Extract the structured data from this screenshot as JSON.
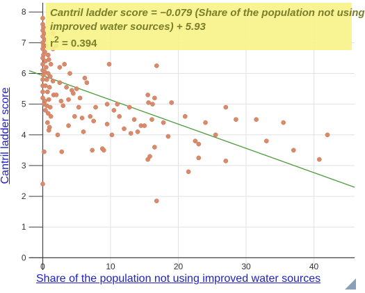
{
  "chart_data": {
    "type": "scatter",
    "xlabel": "Share of the population not using improved water sources",
    "ylabel": "Cantril ladder score",
    "xlim": [
      -2,
      46
    ],
    "ylim": [
      -0.4,
      8.3
    ],
    "x_ticks": [
      0,
      10,
      20,
      30,
      40
    ],
    "y_ticks": [
      0,
      1,
      2,
      3,
      4,
      5,
      6,
      7,
      8
    ],
    "grid": true,
    "point_color": "#d98a6a",
    "trend_color": "#4b9a3a",
    "trendline": {
      "slope": -0.079,
      "intercept": 5.93
    },
    "annotation": {
      "line1": "Cantril ladder score = −0.079 (Share of the population not using",
      "line2": "improved water sources) + 5.93",
      "r2_prefix": "r",
      "r2_sup": "2",
      "r2_value": " = 0.394"
    },
    "points": [
      [
        0,
        7.8
      ],
      [
        0,
        7.6
      ],
      [
        0.1,
        7.5
      ],
      [
        0,
        7.4
      ],
      [
        0.2,
        7.3
      ],
      [
        0,
        7.2
      ],
      [
        0.3,
        7.1
      ],
      [
        0,
        7.0
      ],
      [
        0.1,
        6.9
      ],
      [
        0.5,
        6.9
      ],
      [
        1.5,
        7.3
      ],
      [
        2.0,
        6.9
      ],
      [
        0,
        6.8
      ],
      [
        0.3,
        6.7
      ],
      [
        0.1,
        6.6
      ],
      [
        0.8,
        6.6
      ],
      [
        1.5,
        6.8
      ],
      [
        0,
        6.5
      ],
      [
        0.4,
        6.4
      ],
      [
        0.9,
        6.45
      ],
      [
        0,
        6.3
      ],
      [
        0.5,
        6.2
      ],
      [
        1.2,
        6.3
      ],
      [
        0,
        6.1
      ],
      [
        0.3,
        6.05
      ],
      [
        0.8,
        6.0
      ],
      [
        0.1,
        5.95
      ],
      [
        1.1,
        5.9
      ],
      [
        2.5,
        6.2
      ],
      [
        4.0,
        6.0
      ],
      [
        3.2,
        6.3
      ],
      [
        0,
        5.8
      ],
      [
        0.6,
        5.8
      ],
      [
        1.5,
        5.75
      ],
      [
        2.5,
        5.7
      ],
      [
        6.2,
        5.85
      ],
      [
        6.5,
        5.7
      ],
      [
        0,
        5.6
      ],
      [
        0.4,
        5.6
      ],
      [
        1.0,
        5.55
      ],
      [
        3.5,
        5.55
      ],
      [
        5.0,
        5.5
      ],
      [
        4.3,
        5.45
      ],
      [
        0,
        5.4
      ],
      [
        0.7,
        5.4
      ],
      [
        1.6,
        5.3
      ],
      [
        2.0,
        5.3
      ],
      [
        4.5,
        5.35
      ],
      [
        3.8,
        5.15
      ],
      [
        0,
        5.2
      ],
      [
        0.3,
        5.1
      ],
      [
        0.9,
        5.15
      ],
      [
        2.7,
        5.1
      ],
      [
        0.2,
        5.0
      ],
      [
        0.6,
        4.95
      ],
      [
        1.1,
        4.9
      ],
      [
        3.0,
        4.95
      ],
      [
        5.3,
        4.9
      ],
      [
        5.5,
        5.2
      ],
      [
        7.8,
        4.9
      ],
      [
        0.4,
        4.8
      ],
      [
        0.8,
        4.7
      ],
      [
        1.2,
        4.6
      ],
      [
        4.7,
        4.6
      ],
      [
        5.8,
        4.55
      ],
      [
        7.0,
        4.6
      ],
      [
        0.7,
        4.4
      ],
      [
        1.0,
        4.25
      ],
      [
        0.9,
        4.15
      ],
      [
        2.2,
        4.0
      ],
      [
        3.8,
        4.3
      ],
      [
        6.0,
        4.1
      ],
      [
        7.5,
        4.45
      ],
      [
        9.5,
        5.0
      ],
      [
        9.8,
        6.3
      ],
      [
        10.5,
        4.8
      ],
      [
        11.3,
        4.6
      ],
      [
        11.0,
        5.0
      ],
      [
        12.0,
        4.2
      ],
      [
        12.8,
        4.9
      ],
      [
        13.5,
        4.5
      ],
      [
        14.5,
        4.3
      ],
      [
        15.0,
        4.3
      ],
      [
        15.5,
        5.3
      ],
      [
        15.6,
        5.05
      ],
      [
        16.2,
        5.0
      ],
      [
        16.5,
        5.2
      ],
      [
        16.8,
        6.25
      ],
      [
        17.8,
        4.4
      ],
      [
        16.1,
        4.5
      ],
      [
        14.0,
        4.1
      ],
      [
        13.0,
        4.05
      ],
      [
        9.5,
        4.35
      ],
      [
        10.2,
        4.0
      ],
      [
        0.2,
        3.45
      ],
      [
        2.8,
        3.45
      ],
      [
        7.3,
        3.5
      ],
      [
        8.8,
        3.55
      ],
      [
        9.0,
        3.5
      ],
      [
        15.8,
        3.3
      ],
      [
        15.5,
        3.2
      ],
      [
        16.5,
        3.6
      ],
      [
        18.5,
        3.95
      ],
      [
        19.0,
        5.05
      ],
      [
        21.0,
        4.6
      ],
      [
        22.5,
        3.8
      ],
      [
        23.0,
        3.7
      ],
      [
        23.0,
        3.25
      ],
      [
        24.0,
        4.4
      ],
      [
        25.5,
        4.0
      ],
      [
        27.0,
        4.9
      ],
      [
        27.0,
        3.15
      ],
      [
        28.5,
        4.5
      ],
      [
        31.5,
        4.5
      ],
      [
        33.0,
        3.8
      ],
      [
        35.5,
        4.4
      ],
      [
        37.0,
        3.5
      ],
      [
        40.8,
        3.2
      ],
      [
        42.0,
        4.0
      ],
      [
        21.5,
        2.8
      ],
      [
        16.8,
        1.85
      ],
      [
        0,
        2.4
      ]
    ]
  }
}
